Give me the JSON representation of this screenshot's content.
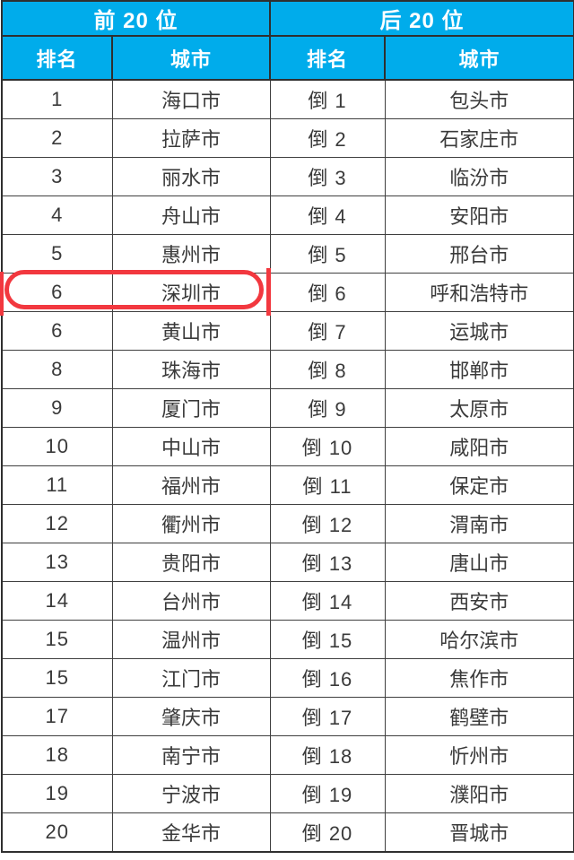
{
  "chart_data": {
    "type": "table",
    "groups": [
      {
        "header": "前 20 位",
        "columns": [
          "排名",
          "城市"
        ],
        "rows": [
          [
            "1",
            "海口市"
          ],
          [
            "2",
            "拉萨市"
          ],
          [
            "3",
            "丽水市"
          ],
          [
            "4",
            "舟山市"
          ],
          [
            "5",
            "惠州市"
          ],
          [
            "6",
            "深圳市"
          ],
          [
            "6",
            "黄山市"
          ],
          [
            "8",
            "珠海市"
          ],
          [
            "9",
            "厦门市"
          ],
          [
            "10",
            "中山市"
          ],
          [
            "11",
            "福州市"
          ],
          [
            "12",
            "衢州市"
          ],
          [
            "13",
            "贵阳市"
          ],
          [
            "14",
            "台州市"
          ],
          [
            "15",
            "温州市"
          ],
          [
            "15",
            "江门市"
          ],
          [
            "17",
            "肇庆市"
          ],
          [
            "18",
            "南宁市"
          ],
          [
            "19",
            "宁波市"
          ],
          [
            "20",
            "金华市"
          ]
        ]
      },
      {
        "header": "后 20 位",
        "columns": [
          "排名",
          "城市"
        ],
        "rows": [
          [
            "倒 1",
            "包头市"
          ],
          [
            "倒 2",
            "石家庄市"
          ],
          [
            "倒 3",
            "临汾市"
          ],
          [
            "倒 4",
            "安阳市"
          ],
          [
            "倒 5",
            "邢台市"
          ],
          [
            "倒 6",
            "呼和浩特市"
          ],
          [
            "倒 7",
            "运城市"
          ],
          [
            "倒 8",
            "邯郸市"
          ],
          [
            "倒 9",
            "太原市"
          ],
          [
            "倒 10",
            "咸阳市"
          ],
          [
            "倒 11",
            "保定市"
          ],
          [
            "倒 12",
            "渭南市"
          ],
          [
            "倒 13",
            "唐山市"
          ],
          [
            "倒 14",
            "西安市"
          ],
          [
            "倒 15",
            "哈尔滨市"
          ],
          [
            "倒 16",
            "焦作市"
          ],
          [
            "倒 17",
            "鹤壁市"
          ],
          [
            "倒 18",
            "忻州市"
          ],
          [
            "倒 19",
            "濮阳市"
          ],
          [
            "倒 20",
            "晋城市"
          ]
        ]
      }
    ],
    "annotation": {
      "shape": "red-oval-highlight",
      "highlighted_row_index": 5,
      "highlighted_rank": "6",
      "highlighted_city": "深圳市"
    },
    "layout_hints": {
      "header_bg": "#00aceb",
      "header_text": "#ffffff",
      "cell_text": "#3a3a3a",
      "grid_border": "#3f3f3f",
      "highlight_red": "#f2383f"
    }
  }
}
